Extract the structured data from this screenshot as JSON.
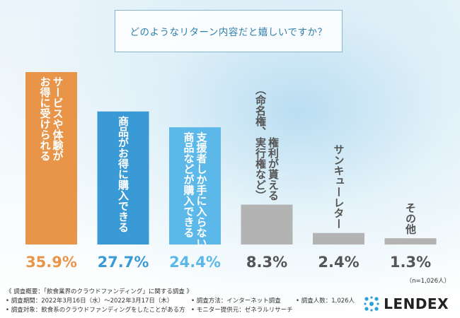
{
  "question": "どのようなリターン内容だと嬉しいですか？",
  "chart_data": {
    "type": "bar",
    "categories": [
      "サービスや体験がお得に受けられる",
      "商品がお得に購入できる",
      "支援者しか手に入らない商品などが購入できる",
      "権利が貰える（命名権、実行権など）",
      "サンキューレター",
      "その他"
    ],
    "label_lines": [
      [
        "サービスや体験が",
        "お得に受けられる"
      ],
      [
        "商品がお得に購入できる"
      ],
      [
        "支援者しか手に入らない",
        "商品などが購入できる"
      ],
      [
        "権利が貰える",
        "（命名権、実行権など）"
      ],
      [
        "サンキューレター"
      ],
      [
        "その他"
      ]
    ],
    "values": [
      35.9,
      27.7,
      24.4,
      8.3,
      2.4,
      1.3
    ],
    "value_labels": [
      "35.9%",
      "27.7%",
      "24.4%",
      "8.3%",
      "2.4%",
      "1.3%"
    ],
    "colors": [
      "#e8954a",
      "#3a9ad6",
      "#5cb8e8",
      "#b3b3b3",
      "#b3b3b3",
      "#b3b3b3"
    ],
    "value_colors": [
      "#e8954a",
      "#3a9ad6",
      "#5cb8e8",
      "#555555",
      "#555555",
      "#555555"
    ],
    "ylim": [
      0,
      35.9
    ],
    "n_note": "（n=1,026人）"
  },
  "footer": {
    "line1": "《 調査概要：「飲食業界のクラウドファンディング」に関する調査 》",
    "period": "• 調査期間：2022年3月16日（水）～2022年3月17日（木）",
    "method": "• 調査方法：インターネット調査",
    "count": "• 調査人数：1,026人",
    "target": "• 調査対象：飲食系のクラウドファンディングをしたことがある方",
    "provider": "• モニター提供元：ゼネラルリサーチ"
  },
  "logo": {
    "text": "LENDEX",
    "icon": "lendex-logo-icon"
  }
}
